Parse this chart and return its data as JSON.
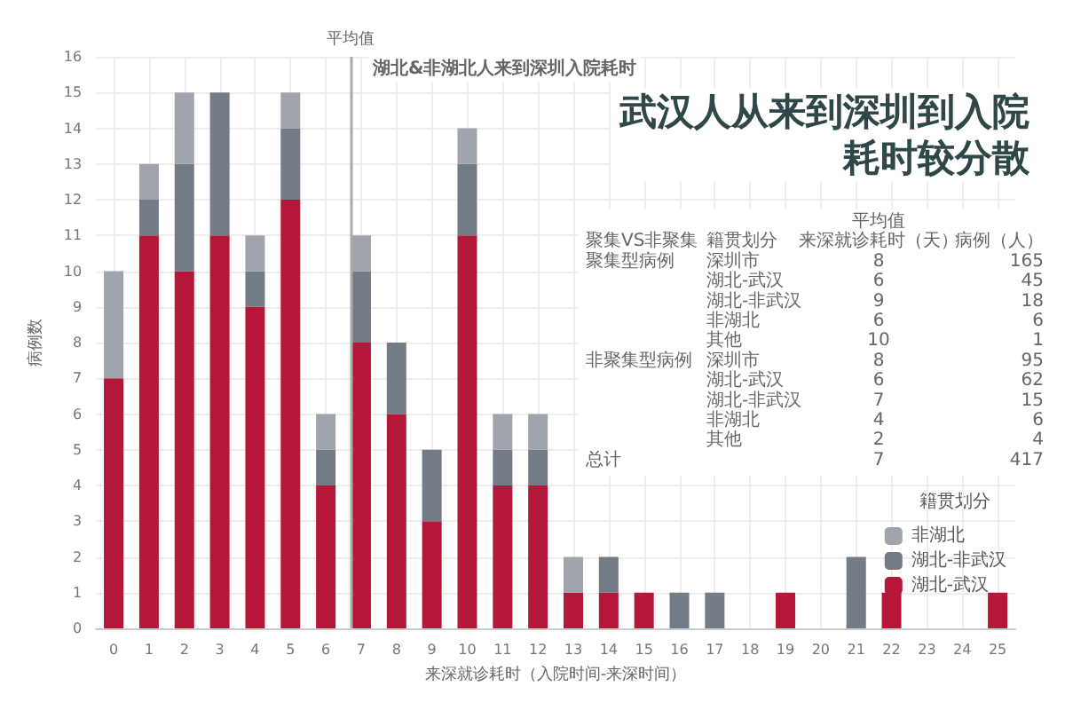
{
  "chart_data": {
    "type": "bar",
    "stacked": true,
    "title": "武汉人从来到深圳到入院耗时较分散",
    "subtitle": "湖北&非湖北人来到深圳入院耗时",
    "xlabel": "来深就诊耗时（入院时间-来深时间）",
    "ylabel": "病例数",
    "legend_title": "籍贯划分",
    "x": [
      0,
      1,
      2,
      3,
      4,
      5,
      6,
      7,
      8,
      9,
      10,
      11,
      12,
      13,
      14,
      15,
      16,
      17,
      18,
      19,
      20,
      21,
      22,
      23,
      24,
      25
    ],
    "series": [
      {
        "name": "湖北-武汉",
        "color": "#b5173a",
        "values": [
          7,
          11,
          10,
          11,
          9,
          12,
          4,
          8,
          6,
          3,
          11,
          4,
          4,
          1,
          1,
          1,
          0,
          0,
          0,
          1,
          0,
          0,
          1,
          0,
          0,
          1
        ]
      },
      {
        "name": "湖北-非武汉",
        "color": "#737b87",
        "values": [
          0,
          1,
          3,
          4,
          1,
          2,
          1,
          2,
          2,
          2,
          2,
          1,
          1,
          0,
          1,
          0,
          1,
          1,
          0,
          0,
          0,
          2,
          0,
          0,
          0,
          0
        ]
      },
      {
        "name": "非湖北",
        "color": "#a0a4ac",
        "values": [
          3,
          1,
          2,
          0,
          1,
          1,
          1,
          1,
          0,
          0,
          1,
          1,
          1,
          1,
          0,
          0,
          0,
          0,
          0,
          0,
          0,
          0,
          0,
          0,
          0,
          0
        ]
      }
    ],
    "xlim": [
      -0.5,
      25.5
    ],
    "xticks": [
      0,
      1,
      2,
      3,
      4,
      5,
      6,
      7,
      8,
      9,
      10,
      11,
      12,
      13,
      14,
      15,
      16,
      17,
      18,
      19,
      20,
      21,
      22,
      23,
      24,
      25
    ],
    "ylim": [
      0,
      16
    ],
    "yticks": [
      0,
      1,
      2,
      3,
      4,
      5,
      6,
      7,
      8,
      9,
      10,
      11,
      12,
      13,
      14,
      15,
      16
    ],
    "ref_lines": [
      {
        "axis": "x",
        "value": 6.7,
        "label": "平均值",
        "color": "#aaaaaa"
      }
    ],
    "grid": true,
    "legend": "right",
    "annotations": [
      "\t\t平均值\t",
      "聚集VS非聚集\t籍贯划分\t来深就诊耗时（天）\t病例（人）",
      "聚集型病例\t深圳市\t8\t165",
      "\t湖北-武汉\t6\t45",
      "\t湖北-非武汉\t9\t18",
      "\t非湖北\t6\t6",
      "\t其他\t10\t1",
      "非聚集型病例\t深圳市\t8\t95",
      "\t湖北-武汉\t6\t62",
      "\t湖北-非武汉\t7\t15",
      "\t非湖北\t4\t6",
      "\t其他\t2\t4",
      "总计\t\t7\t417"
    ]
  }
}
